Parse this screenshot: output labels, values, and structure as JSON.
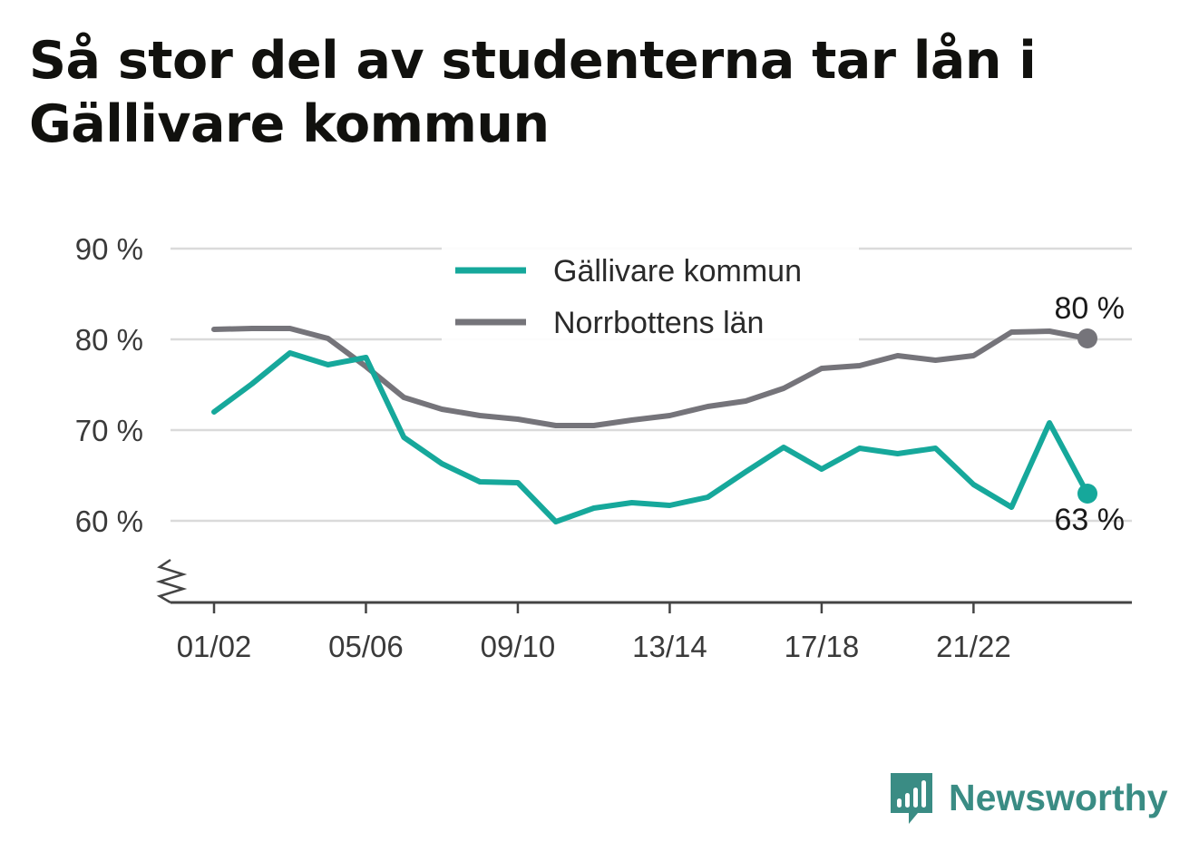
{
  "title": "Så stor del av studenterna tar lån i Gällivare kommun",
  "brand": {
    "name": "Newsworthy"
  },
  "colors": {
    "gallivare": "#16a89b",
    "norrbotten": "#75747a",
    "grid": "#dadada",
    "axis": "#444444"
  },
  "chart_data": {
    "type": "line",
    "title": "Så stor del av studenterna tar lån i Gällivare kommun",
    "xlabel": "",
    "ylabel": "",
    "ylim": [
      51,
      90
    ],
    "yticks": [
      60,
      70,
      80,
      90
    ],
    "ytick_labels": [
      "60 %",
      "70 %",
      "80 %",
      "90 %"
    ],
    "y_axis_broken": true,
    "grid": true,
    "legend_position": "top-center",
    "x": [
      "01/02",
      "02/03",
      "03/04",
      "04/05",
      "05/06",
      "06/07",
      "07/08",
      "08/09",
      "09/10",
      "10/11",
      "11/12",
      "12/13",
      "13/14",
      "14/15",
      "15/16",
      "16/17",
      "17/18",
      "18/19",
      "19/20",
      "20/21",
      "21/22",
      "22/23",
      "23/24",
      "24/25"
    ],
    "xtick_labels": [
      "01/02",
      "05/06",
      "09/10",
      "13/14",
      "17/18",
      "21/22"
    ],
    "series": [
      {
        "name": "Gällivare kommun",
        "color": "#16a89b",
        "values": [
          72.0,
          75.1,
          78.5,
          77.2,
          78.0,
          69.2,
          66.3,
          64.3,
          64.2,
          59.9,
          61.4,
          62.0,
          61.7,
          62.6,
          65.4,
          68.1,
          65.7,
          68.0,
          67.4,
          68.0,
          64.0,
          61.5,
          70.8,
          63.0
        ],
        "end_label": "63 %"
      },
      {
        "name": "Norrbottens län",
        "color": "#75747a",
        "values": [
          81.1,
          81.2,
          81.2,
          80.1,
          77.0,
          73.6,
          72.3,
          71.6,
          71.2,
          70.5,
          70.5,
          71.1,
          71.6,
          72.6,
          73.2,
          74.6,
          76.8,
          77.1,
          78.2,
          77.7,
          78.2,
          80.8,
          80.9,
          80.1
        ],
        "end_label": "80 %"
      }
    ]
  }
}
